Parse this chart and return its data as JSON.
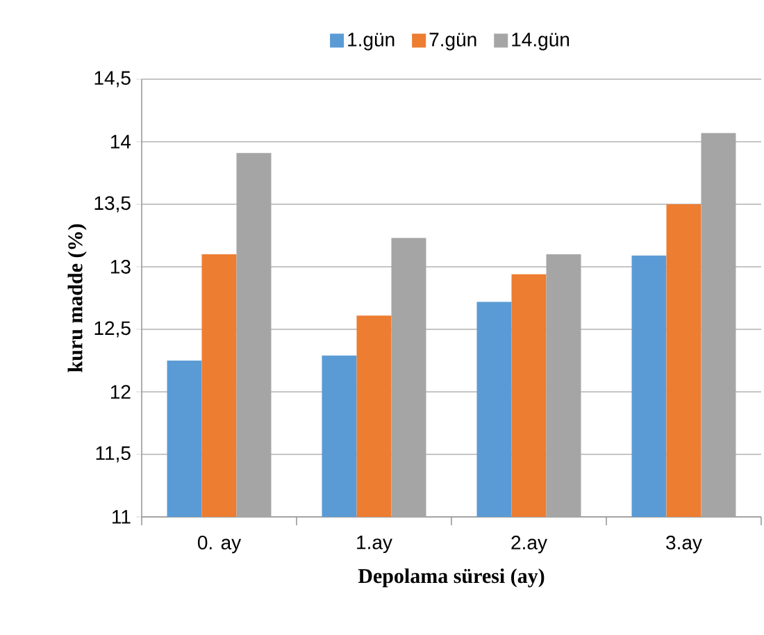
{
  "chart_data": {
    "type": "bar",
    "xlabel": "Depolama süresi (ay)",
    "ylabel": "kuru madde  (%)",
    "categories": [
      "0. ay",
      "1.ay",
      "2.ay",
      "3.ay"
    ],
    "series": [
      {
        "name": "1.gün",
        "color": "#5b9bd5",
        "values": [
          12.25,
          12.29,
          12.72,
          13.09
        ]
      },
      {
        "name": "7.gün",
        "color": "#ed7d31",
        "values": [
          13.1,
          12.61,
          12.94,
          13.5
        ]
      },
      {
        "name": "14.gün",
        "color": "#a5a5a5",
        "values": [
          13.91,
          13.23,
          13.1,
          14.07
        ]
      }
    ],
    "ylim": [
      11,
      14.5
    ],
    "yticks": [
      11,
      {
        "value": 11.5,
        "label": "11,5"
      },
      12,
      {
        "value": 12.5,
        "label": "12,5"
      },
      13,
      {
        "value": 13.5,
        "label": "13,5"
      },
      14,
      {
        "value": 14.5,
        "label": "14,5"
      }
    ],
    "grid": "y",
    "legend": "top"
  }
}
